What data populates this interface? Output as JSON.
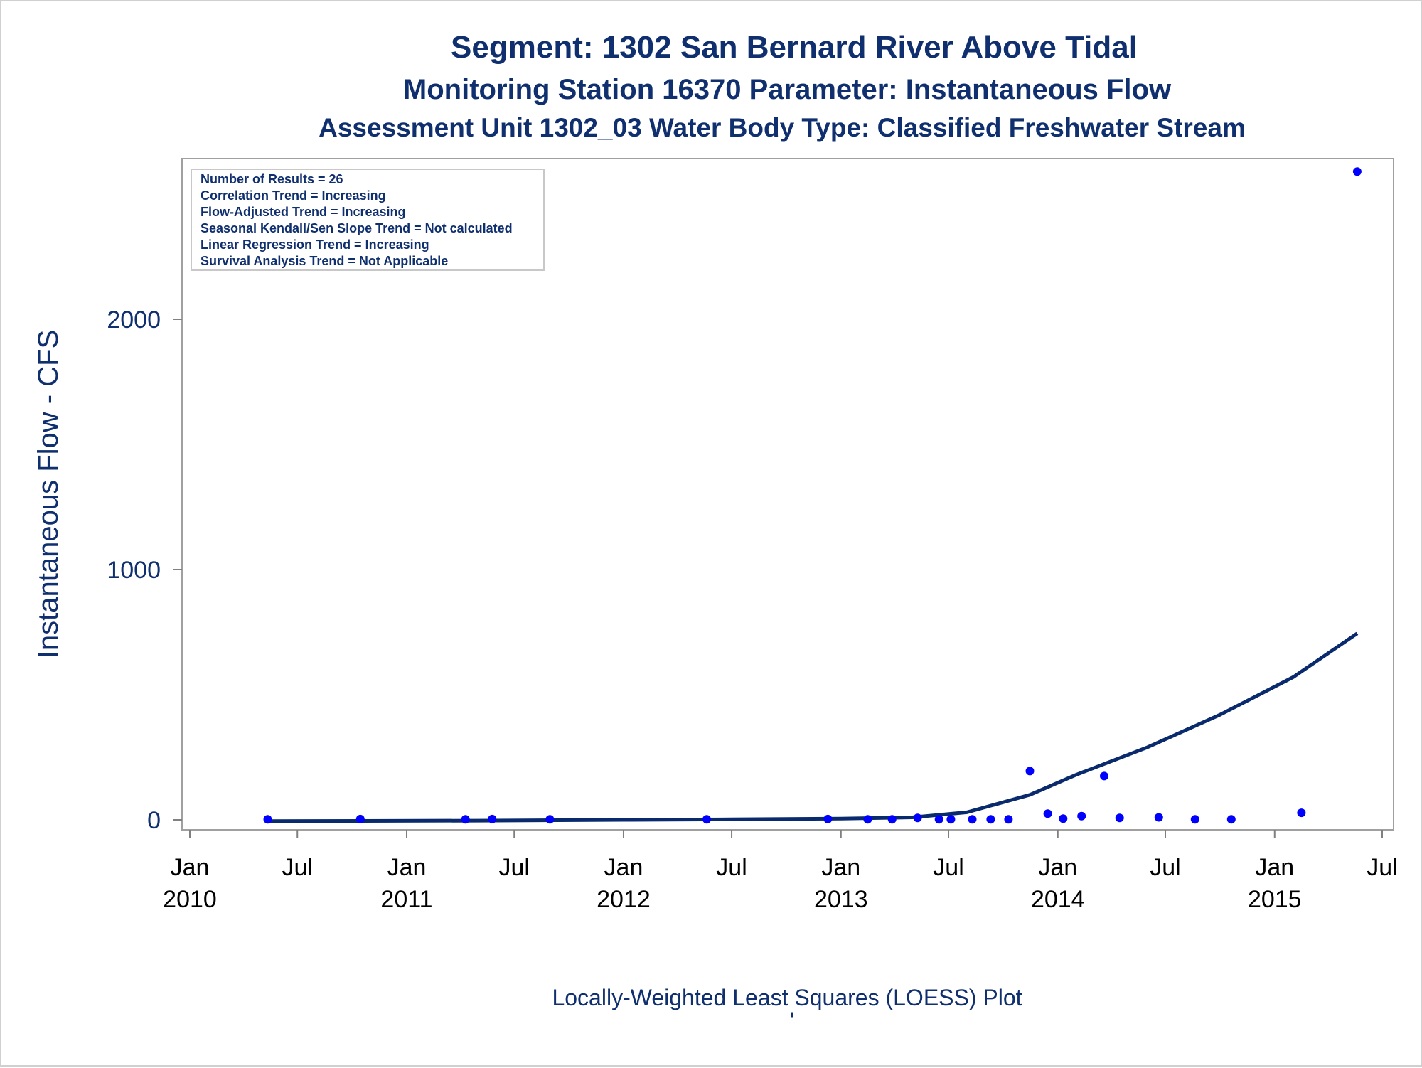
{
  "titles": {
    "line1": "Segment: 1302  San Bernard River Above Tidal",
    "line2": "Monitoring Station 16370 Parameter: Instantaneous Flow",
    "line3": "Assessment Unit 1302_03   Water Body Type: Classified Freshwater Stream"
  },
  "footnote": {
    "caption": "Locally-Weighted Least Squares (LOESS) Plot",
    "mark": "'"
  },
  "colors": {
    "title": "#0f2f6e",
    "points": "#0000ff",
    "loess_line": "#0a2a6e",
    "frame": "#a0a0a0"
  },
  "stats_box": [
    "Number of Results = 26",
    "Correlation Trend = Increasing",
    "Flow-Adjusted Trend = Increasing",
    "Seasonal Kendall/Sen Slope Trend = Not calculated",
    "Linear Regression Trend = Increasing",
    "Survival Analysis Trend = Not Applicable"
  ],
  "chart_data": {
    "type": "scatter",
    "ylabel": "Instantaneous Flow - CFS",
    "xlabel": "",
    "x_axis": {
      "type": "date",
      "range": [
        "2010-01-01",
        "2015-07-01"
      ],
      "ticks": [
        {
          "date": "2010-01-01",
          "line1": "Jan",
          "line2": "2010"
        },
        {
          "date": "2010-07-01",
          "line1": "Jul",
          "line2": ""
        },
        {
          "date": "2011-01-01",
          "line1": "Jan",
          "line2": "2011"
        },
        {
          "date": "2011-07-01",
          "line1": "Jul",
          "line2": ""
        },
        {
          "date": "2012-01-01",
          "line1": "Jan",
          "line2": "2012"
        },
        {
          "date": "2012-07-01",
          "line1": "Jul",
          "line2": ""
        },
        {
          "date": "2013-01-01",
          "line1": "Jan",
          "line2": "2013"
        },
        {
          "date": "2013-07-01",
          "line1": "Jul",
          "line2": ""
        },
        {
          "date": "2014-01-01",
          "line1": "Jan",
          "line2": "2014"
        },
        {
          "date": "2014-07-01",
          "line1": "Jul",
          "line2": ""
        },
        {
          "date": "2015-01-01",
          "line1": "Jan",
          "line2": "2015"
        },
        {
          "date": "2015-07-01",
          "line1": "Jul",
          "line2": ""
        }
      ]
    },
    "y_axis": {
      "range": [
        -40,
        2650
      ],
      "ticks": [
        0,
        1000,
        2000
      ]
    },
    "grid": false,
    "series": [
      {
        "kind": "points",
        "points": [
          {
            "x": "2010-05-12",
            "y": 2
          },
          {
            "x": "2010-10-15",
            "y": 3
          },
          {
            "x": "2011-04-10",
            "y": 2
          },
          {
            "x": "2011-05-25",
            "y": 3
          },
          {
            "x": "2011-08-30",
            "y": 2
          },
          {
            "x": "2012-05-20",
            "y": 2
          },
          {
            "x": "2012-12-10",
            "y": 3
          },
          {
            "x": "2013-02-15",
            "y": 2
          },
          {
            "x": "2013-03-28",
            "y": 2
          },
          {
            "x": "2013-05-10",
            "y": 8
          },
          {
            "x": "2013-06-15",
            "y": 2
          },
          {
            "x": "2013-07-05",
            "y": 2
          },
          {
            "x": "2013-08-10",
            "y": 2
          },
          {
            "x": "2013-09-10",
            "y": 2
          },
          {
            "x": "2013-10-10",
            "y": 2
          },
          {
            "x": "2013-11-15",
            "y": 195
          },
          {
            "x": "2013-12-15",
            "y": 25
          },
          {
            "x": "2014-01-10",
            "y": 5
          },
          {
            "x": "2014-02-10",
            "y": 15
          },
          {
            "x": "2014-03-20",
            "y": 175
          },
          {
            "x": "2014-04-15",
            "y": 8
          },
          {
            "x": "2014-06-20",
            "y": 10
          },
          {
            "x": "2014-08-20",
            "y": 2
          },
          {
            "x": "2014-10-20",
            "y": 2
          },
          {
            "x": "2015-02-15",
            "y": 28
          },
          {
            "x": "2015-05-20",
            "y": 2590
          }
        ]
      },
      {
        "kind": "loess",
        "points": [
          {
            "x": "2010-05-12",
            "y": -5
          },
          {
            "x": "2011-05-01",
            "y": -3
          },
          {
            "x": "2012-01-01",
            "y": 0
          },
          {
            "x": "2012-07-01",
            "y": 2
          },
          {
            "x": "2013-01-01",
            "y": 5
          },
          {
            "x": "2013-05-01",
            "y": 10
          },
          {
            "x": "2013-08-01",
            "y": 30
          },
          {
            "x": "2013-11-15",
            "y": 100
          },
          {
            "x": "2014-02-01",
            "y": 180
          },
          {
            "x": "2014-06-01",
            "y": 290
          },
          {
            "x": "2014-10-01",
            "y": 420
          },
          {
            "x": "2015-02-01",
            "y": 570
          },
          {
            "x": "2015-05-20",
            "y": 745
          }
        ]
      }
    ]
  }
}
